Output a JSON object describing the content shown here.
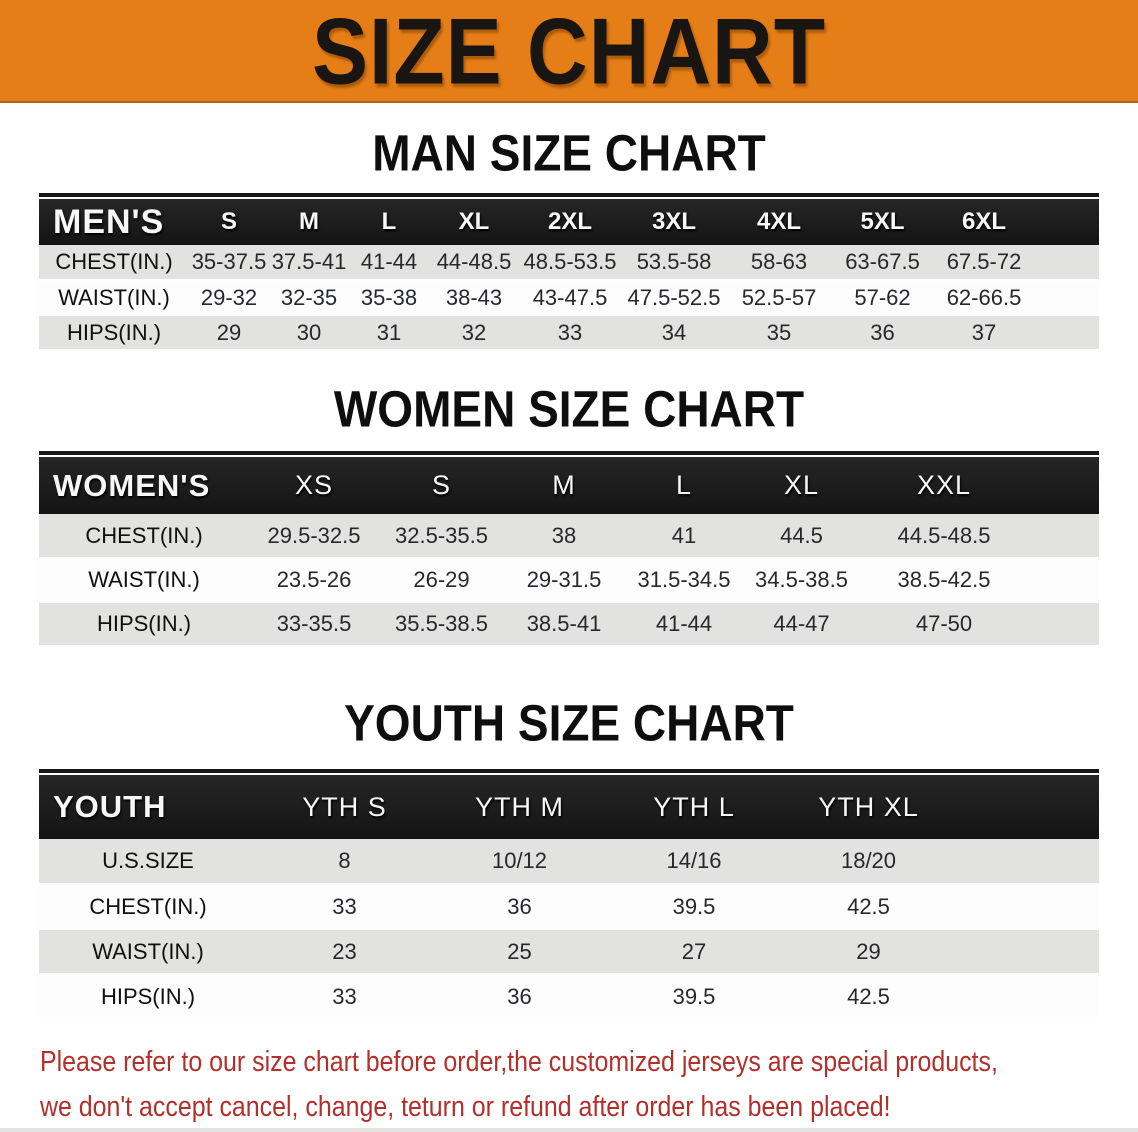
{
  "banner": {
    "title": "SIZE CHART"
  },
  "colors": {
    "banner_bg": "#e67e17",
    "banner_text": "#191512",
    "table_header_bg": "#1b1b1b",
    "table_header_text": "#ffffff",
    "row_stripe_gray": "#e2e2e0",
    "notice_red": "#b2302c"
  },
  "sections": [
    {
      "heading": "MAN SIZE CHART",
      "table": {
        "label": "MEN'S",
        "columns": [
          "S",
          "M",
          "L",
          "XL",
          "2XL",
          "3XL",
          "4XL",
          "5XL",
          "6XL"
        ],
        "rows": [
          {
            "label": "CHEST(IN.)",
            "values": [
              "35-37.5",
              "37.5-41",
              "41-44",
              "44-48.5",
              "48.5-53.5",
              "53.5-58",
              "58-63",
              "63-67.5",
              "67.5-72"
            ]
          },
          {
            "label": "WAIST(IN.)",
            "values": [
              "29-32",
              "32-35",
              "35-38",
              "38-43",
              "43-47.5",
              "47.5-52.5",
              "52.5-57",
              "57-62",
              "62-66.5"
            ]
          },
          {
            "label": "HIPS(IN.)",
            "values": [
              "29",
              "30",
              "31",
              "32",
              "33",
              "34",
              "35",
              "36",
              "37"
            ]
          }
        ]
      }
    },
    {
      "heading": "WOMEN SIZE CHART",
      "table": {
        "label": "WOMEN'S",
        "columns": [
          "XS",
          "S",
          "M",
          "L",
          "XL",
          "XXL"
        ],
        "rows": [
          {
            "label": "CHEST(IN.)",
            "values": [
              "29.5-32.5",
              "32.5-35.5",
              "38",
              "41",
              "44.5",
              "44.5-48.5"
            ]
          },
          {
            "label": "WAIST(IN.)",
            "values": [
              "23.5-26",
              "26-29",
              "29-31.5",
              "31.5-34.5",
              "34.5-38.5",
              "38.5-42.5"
            ]
          },
          {
            "label": "HIPS(IN.)",
            "values": [
              "33-35.5",
              "35.5-38.5",
              "38.5-41",
              "41-44",
              "44-47",
              "47-50"
            ]
          }
        ]
      }
    },
    {
      "heading": "YOUTH SIZE CHART",
      "table": {
        "label": "YOUTH",
        "columns": [
          "YTH S",
          "YTH M",
          "YTH L",
          "YTH XL"
        ],
        "rows": [
          {
            "label": "U.S.SIZE",
            "values": [
              "8",
              "10/12",
              "14/16",
              "18/20"
            ]
          },
          {
            "label": "CHEST(IN.)",
            "values": [
              "33",
              "36",
              "39.5",
              "42.5"
            ]
          },
          {
            "label": "WAIST(IN.)",
            "values": [
              "23",
              "25",
              "27",
              "29"
            ]
          },
          {
            "label": "HIPS(IN.)",
            "values": [
              "33",
              "36",
              "39.5",
              "42.5"
            ]
          }
        ]
      }
    }
  ],
  "footer": {
    "line1": "Please refer to our size chart before order,the customized jerseys are special products,",
    "line2": "we don't accept cancel, change, teturn or refund after order has been placed!"
  }
}
